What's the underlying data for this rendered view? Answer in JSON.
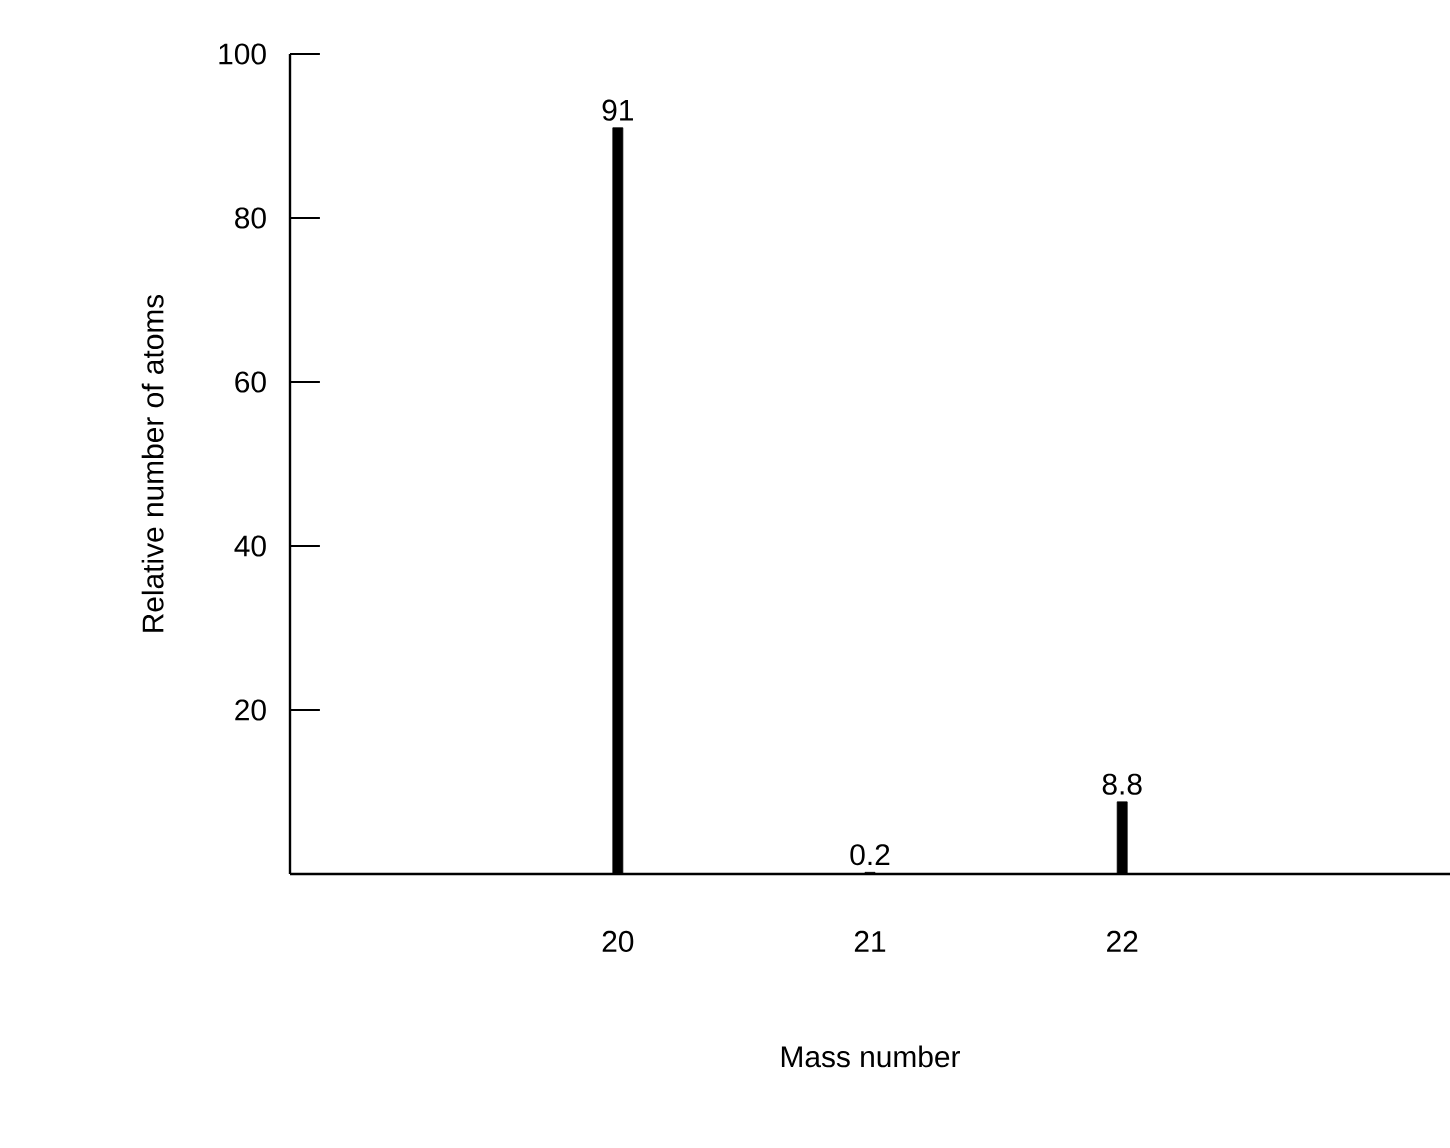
{
  "chart_data": {
    "type": "bar",
    "xlabel": "Mass number",
    "ylabel": "Relative number of atoms",
    "categories": [
      "20",
      "21",
      "22"
    ],
    "values": [
      91,
      0.2,
      8.8
    ],
    "color": "#000000",
    "ylim": [
      0,
      100
    ],
    "yticks": [
      20,
      40,
      60,
      80,
      100
    ],
    "data_labels": true,
    "grid": false
  }
}
